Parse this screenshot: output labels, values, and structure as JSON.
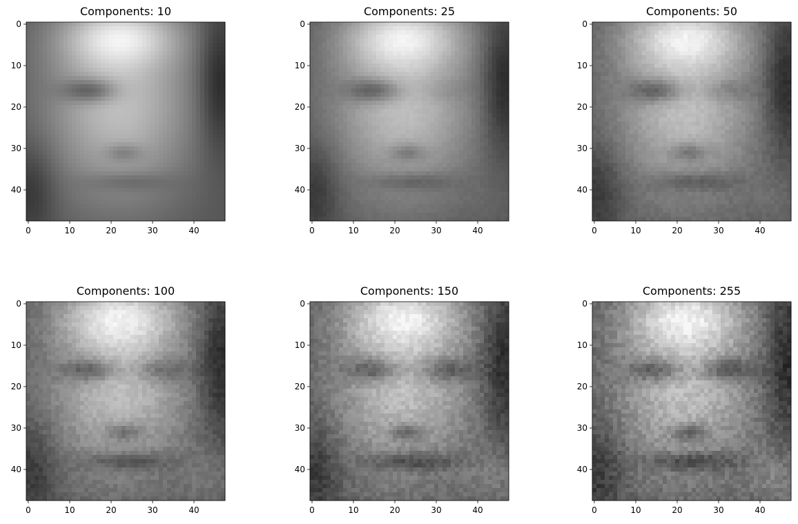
{
  "figure": {
    "panels": [
      {
        "title": "Components: 10"
      },
      {
        "title": "Components: 25"
      },
      {
        "title": "Components: 50"
      },
      {
        "title": "Components: 100"
      },
      {
        "title": "Components: 150"
      },
      {
        "title": "Components: 255"
      }
    ]
  },
  "chart_data": [
    {
      "type": "heatmap",
      "title": "Components: 10",
      "colormap": "gray",
      "grid": false,
      "xlim": [
        -0.5,
        47.5
      ],
      "ylim": [
        47.5,
        -0.5
      ],
      "xticks": [
        0,
        10,
        20,
        30,
        40
      ],
      "yticks": [
        0,
        10,
        20,
        30,
        40
      ],
      "xtick_labels": [
        "0",
        "10",
        "20",
        "30",
        "40"
      ],
      "ytick_labels": [
        "0",
        "10",
        "20",
        "30",
        "40"
      ],
      "image_size": [
        48,
        48
      ],
      "content": "PCA reconstruction of face with 10 components"
    },
    {
      "type": "heatmap",
      "title": "Components: 25",
      "colormap": "gray",
      "grid": false,
      "xlim": [
        -0.5,
        47.5
      ],
      "ylim": [
        47.5,
        -0.5
      ],
      "xticks": [
        0,
        10,
        20,
        30,
        40
      ],
      "yticks": [
        0,
        10,
        20,
        30,
        40
      ],
      "xtick_labels": [
        "0",
        "10",
        "20",
        "30",
        "40"
      ],
      "ytick_labels": [
        "0",
        "10",
        "20",
        "30",
        "40"
      ],
      "image_size": [
        48,
        48
      ],
      "content": "PCA reconstruction of face with 25 components"
    },
    {
      "type": "heatmap",
      "title": "Components: 50",
      "colormap": "gray",
      "grid": false,
      "xlim": [
        -0.5,
        47.5
      ],
      "ylim": [
        47.5,
        -0.5
      ],
      "xticks": [
        0,
        10,
        20,
        30,
        40
      ],
      "yticks": [
        0,
        10,
        20,
        30,
        40
      ],
      "xtick_labels": [
        "0",
        "10",
        "20",
        "30",
        "40"
      ],
      "ytick_labels": [
        "0",
        "10",
        "20",
        "30",
        "40"
      ],
      "image_size": [
        48,
        48
      ],
      "content": "PCA reconstruction of face with 50 components"
    },
    {
      "type": "heatmap",
      "title": "Components: 100",
      "colormap": "gray",
      "grid": false,
      "xlim": [
        -0.5,
        47.5
      ],
      "ylim": [
        47.5,
        -0.5
      ],
      "xticks": [
        0,
        10,
        20,
        30,
        40
      ],
      "yticks": [
        0,
        10,
        20,
        30,
        40
      ],
      "xtick_labels": [
        "0",
        "10",
        "20",
        "30",
        "40"
      ],
      "ytick_labels": [
        "0",
        "10",
        "20",
        "30",
        "40"
      ],
      "image_size": [
        48,
        48
      ],
      "content": "PCA reconstruction of face with 100 components"
    },
    {
      "type": "heatmap",
      "title": "Components: 150",
      "colormap": "gray",
      "grid": false,
      "xlim": [
        -0.5,
        47.5
      ],
      "ylim": [
        47.5,
        -0.5
      ],
      "xticks": [
        0,
        10,
        20,
        30,
        40
      ],
      "yticks": [
        0,
        10,
        20,
        30,
        40
      ],
      "xtick_labels": [
        "0",
        "10",
        "20",
        "30",
        "40"
      ],
      "ytick_labels": [
        "0",
        "10",
        "20",
        "30",
        "40"
      ],
      "image_size": [
        48,
        48
      ],
      "content": "PCA reconstruction of face with 150 components"
    },
    {
      "type": "heatmap",
      "title": "Components: 255",
      "colormap": "gray",
      "grid": false,
      "xlim": [
        -0.5,
        47.5
      ],
      "ylim": [
        47.5,
        -0.5
      ],
      "xticks": [
        0,
        10,
        20,
        30,
        40
      ],
      "yticks": [
        0,
        10,
        20,
        30,
        40
      ],
      "xtick_labels": [
        "0",
        "10",
        "20",
        "30",
        "40"
      ],
      "ytick_labels": [
        "0",
        "10",
        "20",
        "30",
        "40"
      ],
      "image_size": [
        48,
        48
      ],
      "content": "PCA reconstruction of face with 255 components"
    }
  ]
}
